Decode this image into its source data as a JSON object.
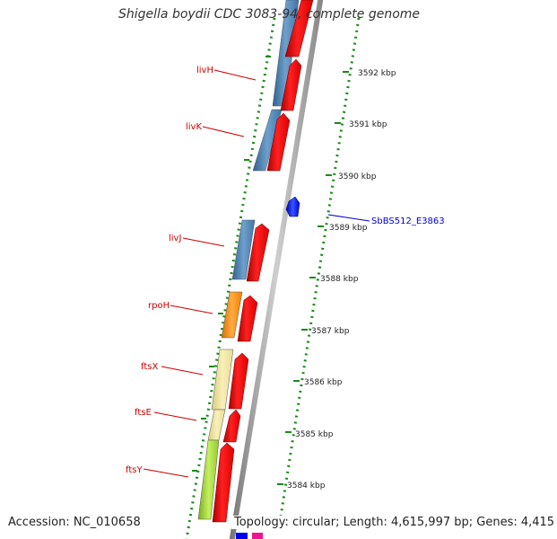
{
  "title": "Shigella boydii CDC 3083-94, complete genome",
  "footer": {
    "accession": "Accession: NC_010658",
    "topology": "Topology: circular; Length: 4,615,997 bp; Genes: 4,415"
  },
  "colors": {
    "backbone": "#999999",
    "tick_dots": "#1a8a1a",
    "forward_cds": "#ee0000",
    "gene_label": "#cc0000",
    "feature_label": "#0000cc",
    "livH_gene": "#4682b4",
    "rpoH_gene": "#ff8c00",
    "ftsX_gene": "#f0e68c",
    "ftsY_gene": "#9acd32"
  },
  "kbp_ticks": [
    "3592 kbp",
    "3591 kbp",
    "3590 kbp",
    "3589 kbp",
    "3588 kbp",
    "3587 kbp",
    "3586 kbp",
    "3585 kbp",
    "3584 kbp"
  ],
  "gene_labels": [
    "livH",
    "livK",
    "livJ",
    "rpoH",
    "ftsX",
    "ftsE",
    "ftsY"
  ],
  "feature_labels": [
    "SbBS512_E3863"
  ]
}
